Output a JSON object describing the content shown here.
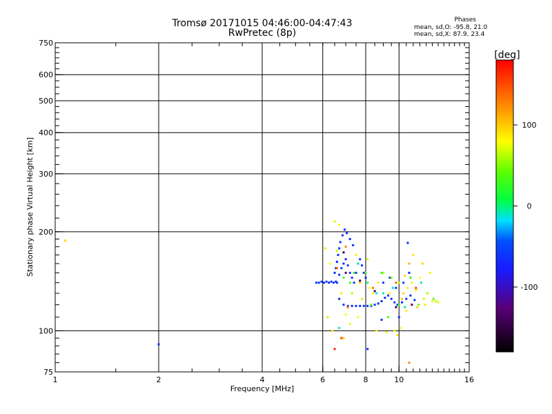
{
  "header": {
    "title_line1": "Tromsø 20171015 04:46:00-04:47:43",
    "title_line2": "RwPretec (8p)",
    "stats_title": "Phases",
    "stats_o": "mean, sd,O: -95.8, 21.0",
    "stats_x": "mean, sd,X:  87.9, 23.4"
  },
  "colorbar": {
    "unit_label": "[deg]",
    "ticks": [
      {
        "value": 100,
        "label": "100"
      },
      {
        "value": 0,
        "label": "0"
      },
      {
        "value": -100,
        "label": "-100"
      }
    ],
    "range": [
      -180,
      180
    ]
  },
  "chart_data": {
    "type": "scatter",
    "xlabel": "Frequency [MHz]",
    "ylabel": "Stationary phase Virtual Height [km]",
    "x_scale": "log",
    "y_scale": "log",
    "xlim": [
      1,
      16
    ],
    "ylim": [
      75,
      750
    ],
    "x_ticks": [
      1,
      2,
      4,
      6,
      8,
      10,
      16
    ],
    "y_ticks": [
      75,
      100,
      200,
      300,
      400,
      500,
      600,
      750
    ],
    "x_grid": [
      2,
      4,
      6,
      8,
      10
    ],
    "y_grid": [
      100,
      200,
      300,
      400,
      500,
      600
    ],
    "color_encodes": "phase [deg]",
    "points": [
      {
        "x": 1.07,
        "y": 188,
        "p": 110
      },
      {
        "x": 2.0,
        "y": 91,
        "p": -100
      },
      {
        "x": 5.75,
        "y": 140,
        "p": -95
      },
      {
        "x": 5.85,
        "y": 140,
        "p": -98
      },
      {
        "x": 5.95,
        "y": 141,
        "p": -92
      },
      {
        "x": 6.05,
        "y": 140,
        "p": -100
      },
      {
        "x": 6.15,
        "y": 141,
        "p": -90
      },
      {
        "x": 6.25,
        "y": 140,
        "p": -96
      },
      {
        "x": 6.35,
        "y": 141,
        "p": -102
      },
      {
        "x": 6.45,
        "y": 140,
        "p": -94
      },
      {
        "x": 6.55,
        "y": 141,
        "p": -99
      },
      {
        "x": 6.5,
        "y": 150,
        "p": -100
      },
      {
        "x": 6.55,
        "y": 155,
        "p": -92
      },
      {
        "x": 6.6,
        "y": 162,
        "p": -105
      },
      {
        "x": 6.65,
        "y": 170,
        "p": -98
      },
      {
        "x": 6.7,
        "y": 178,
        "p": -95
      },
      {
        "x": 6.75,
        "y": 186,
        "p": -101
      },
      {
        "x": 6.85,
        "y": 195,
        "p": -97
      },
      {
        "x": 6.95,
        "y": 203,
        "p": -93
      },
      {
        "x": 7.05,
        "y": 198,
        "p": -99
      },
      {
        "x": 7.2,
        "y": 190,
        "p": -102
      },
      {
        "x": 7.35,
        "y": 182,
        "p": -96
      },
      {
        "x": 6.6,
        "y": 140,
        "p": -95
      },
      {
        "x": 6.7,
        "y": 148,
        "p": -100
      },
      {
        "x": 6.8,
        "y": 155,
        "p": -92
      },
      {
        "x": 6.9,
        "y": 160,
        "p": -98
      },
      {
        "x": 7.0,
        "y": 165,
        "p": -104
      },
      {
        "x": 7.1,
        "y": 158,
        "p": -95
      },
      {
        "x": 7.2,
        "y": 150,
        "p": -90
      },
      {
        "x": 7.3,
        "y": 145,
        "p": -99
      },
      {
        "x": 7.4,
        "y": 140,
        "p": -103
      },
      {
        "x": 7.5,
        "y": 150,
        "p": -96
      },
      {
        "x": 7.6,
        "y": 160,
        "p": -92
      },
      {
        "x": 7.7,
        "y": 165,
        "p": -100
      },
      {
        "x": 7.8,
        "y": 158,
        "p": -98
      },
      {
        "x": 7.9,
        "y": 150,
        "p": -94
      },
      {
        "x": 8.0,
        "y": 145,
        "p": -101
      },
      {
        "x": 6.7,
        "y": 125,
        "p": -97
      },
      {
        "x": 6.9,
        "y": 120,
        "p": -100
      },
      {
        "x": 7.1,
        "y": 119,
        "p": -93
      },
      {
        "x": 7.3,
        "y": 119,
        "p": -99
      },
      {
        "x": 7.5,
        "y": 119,
        "p": -95
      },
      {
        "x": 7.7,
        "y": 119,
        "p": -102
      },
      {
        "x": 7.9,
        "y": 119,
        "p": -96
      },
      {
        "x": 8.1,
        "y": 119,
        "p": -92
      },
      {
        "x": 8.3,
        "y": 119,
        "p": -100
      },
      {
        "x": 8.5,
        "y": 120,
        "p": -97
      },
      {
        "x": 8.7,
        "y": 121,
        "p": -94
      },
      {
        "x": 8.9,
        "y": 123,
        "p": -101
      },
      {
        "x": 9.1,
        "y": 126,
        "p": -98
      },
      {
        "x": 9.3,
        "y": 128,
        "p": -95
      },
      {
        "x": 9.5,
        "y": 125,
        "p": -100
      },
      {
        "x": 9.7,
        "y": 122,
        "p": -93
      },
      {
        "x": 9.9,
        "y": 120,
        "p": -97
      },
      {
        "x": 10.2,
        "y": 122,
        "p": -102
      },
      {
        "x": 10.5,
        "y": 125,
        "p": -96
      },
      {
        "x": 10.8,
        "y": 128,
        "p": -99
      },
      {
        "x": 11.1,
        "y": 124,
        "p": -94
      },
      {
        "x": 9.0,
        "y": 140,
        "p": -95
      },
      {
        "x": 9.4,
        "y": 145,
        "p": -100
      },
      {
        "x": 9.8,
        "y": 135,
        "p": -97
      },
      {
        "x": 10.3,
        "y": 140,
        "p": -93
      },
      {
        "x": 10.7,
        "y": 150,
        "p": -101
      },
      {
        "x": 10.6,
        "y": 185,
        "p": -100
      },
      {
        "x": 8.1,
        "y": 88,
        "p": -100
      },
      {
        "x": 8.9,
        "y": 108,
        "p": -96
      },
      {
        "x": 10.0,
        "y": 110,
        "p": -99
      },
      {
        "x": 6.3,
        "y": 160,
        "p": 90
      },
      {
        "x": 6.5,
        "y": 215,
        "p": 80
      },
      {
        "x": 6.7,
        "y": 210,
        "p": 95
      },
      {
        "x": 6.6,
        "y": 175,
        "p": 70
      },
      {
        "x": 6.8,
        "y": 130,
        "p": 100
      },
      {
        "x": 7.0,
        "y": 112,
        "p": 85
      },
      {
        "x": 7.3,
        "y": 130,
        "p": 60
      },
      {
        "x": 7.5,
        "y": 170,
        "p": 95
      },
      {
        "x": 7.7,
        "y": 140,
        "p": 110
      },
      {
        "x": 8.1,
        "y": 165,
        "p": 75
      },
      {
        "x": 8.4,
        "y": 130,
        "p": 90
      },
      {
        "x": 8.7,
        "y": 140,
        "p": 100
      },
      {
        "x": 9.0,
        "y": 150,
        "p": 65
      },
      {
        "x": 9.4,
        "y": 130,
        "p": 95
      },
      {
        "x": 9.7,
        "y": 100,
        "p": 85
      },
      {
        "x": 10.0,
        "y": 140,
        "p": 70
      },
      {
        "x": 10.3,
        "y": 130,
        "p": 110
      },
      {
        "x": 10.6,
        "y": 135,
        "p": 95
      },
      {
        "x": 10.9,
        "y": 140,
        "p": 80
      },
      {
        "x": 11.2,
        "y": 133,
        "p": 100
      },
      {
        "x": 11.5,
        "y": 145,
        "p": 90
      },
      {
        "x": 11.8,
        "y": 125,
        "p": 75
      },
      {
        "x": 12.1,
        "y": 130,
        "p": 60
      },
      {
        "x": 12.5,
        "y": 123,
        "p": 85
      },
      {
        "x": 12.8,
        "y": 123,
        "p": 70
      },
      {
        "x": 13.0,
        "y": 122,
        "p": 80
      },
      {
        "x": 12.3,
        "y": 150,
        "p": 95
      },
      {
        "x": 11.7,
        "y": 160,
        "p": 110
      },
      {
        "x": 11.0,
        "y": 170,
        "p": 100
      },
      {
        "x": 10.7,
        "y": 160,
        "p": 120
      },
      {
        "x": 10.4,
        "y": 147,
        "p": 105
      },
      {
        "x": 10.2,
        "y": 125,
        "p": 120
      },
      {
        "x": 10.5,
        "y": 115,
        "p": 95
      },
      {
        "x": 11.3,
        "y": 118,
        "p": 110
      },
      {
        "x": 11.9,
        "y": 120,
        "p": 100
      },
      {
        "x": 8.6,
        "y": 100,
        "p": 95
      },
      {
        "x": 9.2,
        "y": 99,
        "p": 80
      },
      {
        "x": 9.9,
        "y": 97,
        "p": 105
      },
      {
        "x": 10.1,
        "y": 102,
        "p": 90
      },
      {
        "x": 6.4,
        "y": 100,
        "p": 95
      },
      {
        "x": 6.9,
        "y": 95,
        "p": 110
      },
      {
        "x": 7.6,
        "y": 110,
        "p": 85
      },
      {
        "x": 6.2,
        "y": 110,
        "p": 70
      },
      {
        "x": 7.8,
        "y": 125,
        "p": 100
      },
      {
        "x": 8.2,
        "y": 135,
        "p": 90
      },
      {
        "x": 6.1,
        "y": 178,
        "p": 100
      },
      {
        "x": 7.2,
        "y": 105,
        "p": 80
      },
      {
        "x": 6.6,
        "y": 155,
        "p": 150
      },
      {
        "x": 7.1,
        "y": 118,
        "p": 150
      },
      {
        "x": 6.5,
        "y": 88,
        "p": 170
      },
      {
        "x": 7.0,
        "y": 180,
        "p": 140
      },
      {
        "x": 9.8,
        "y": 140,
        "p": 150
      },
      {
        "x": 10.7,
        "y": 80,
        "p": 140
      },
      {
        "x": 11.2,
        "y": 135,
        "p": 160
      },
      {
        "x": 6.8,
        "y": 95,
        "p": 160
      },
      {
        "x": 8.4,
        "y": 135,
        "p": 145
      },
      {
        "x": 7.4,
        "y": 150,
        "p": 20
      },
      {
        "x": 8.0,
        "y": 150,
        "p": 30
      },
      {
        "x": 8.9,
        "y": 150,
        "p": 10
      },
      {
        "x": 9.5,
        "y": 145,
        "p": 40
      },
      {
        "x": 10.0,
        "y": 120,
        "p": 25
      },
      {
        "x": 10.8,
        "y": 145,
        "p": 15
      },
      {
        "x": 11.4,
        "y": 120,
        "p": 30
      },
      {
        "x": 12.6,
        "y": 125,
        "p": 35
      },
      {
        "x": 6.9,
        "y": 145,
        "p": 20
      },
      {
        "x": 8.3,
        "y": 120,
        "p": 30
      },
      {
        "x": 7.2,
        "y": 140,
        "p": 25
      },
      {
        "x": 9.3,
        "y": 110,
        "p": 20
      },
      {
        "x": 8.1,
        "y": 140,
        "p": -10
      },
      {
        "x": 9.0,
        "y": 130,
        "p": -20
      },
      {
        "x": 10.4,
        "y": 118,
        "p": -15
      },
      {
        "x": 7.6,
        "y": 160,
        "p": -25
      },
      {
        "x": 6.7,
        "y": 102,
        "p": -30
      },
      {
        "x": 11.6,
        "y": 140,
        "p": -20
      },
      {
        "x": 9.6,
        "y": 135,
        "p": -35
      },
      {
        "x": 8.6,
        "y": 130,
        "p": -40
      },
      {
        "x": 7.0,
        "y": 150,
        "p": -140
      },
      {
        "x": 8.5,
        "y": 132,
        "p": -150
      },
      {
        "x": 9.8,
        "y": 118,
        "p": -160
      },
      {
        "x": 10.9,
        "y": 120,
        "p": -145
      },
      {
        "x": 7.7,
        "y": 142,
        "p": -155
      },
      {
        "x": 6.9,
        "y": 173,
        "p": -160
      }
    ]
  }
}
